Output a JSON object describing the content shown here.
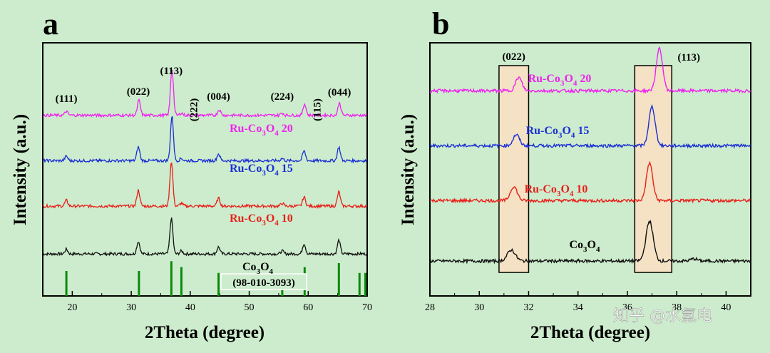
{
  "watermark": "知乎 @水氢电",
  "colors": {
    "black": "#111111",
    "red": "#e8201a",
    "blue": "#1a2fd4",
    "magenta": "#ee22ee",
    "reference": "#0a8a0a",
    "highlight": "#f5e2c4"
  },
  "chart_data": [
    {
      "panel": "a",
      "type": "line",
      "xlabel": "2Theta (degree)",
      "ylabel": "Intensity (a.u.)",
      "xlim": [
        15,
        70
      ],
      "xticks": [
        20,
        30,
        40,
        50,
        60,
        70
      ],
      "peak_labels": [
        {
          "text": "(111)",
          "x": 19.0
        },
        {
          "text": "(022)",
          "x": 31.2
        },
        {
          "text": "(113)",
          "x": 36.8
        },
        {
          "text": "(222)",
          "x": 38.5,
          "rotated": true
        },
        {
          "text": "(004)",
          "x": 44.8
        },
        {
          "text": "(224)",
          "x": 55.6
        },
        {
          "text": "(115)",
          "x": 59.4,
          "rotated": true
        },
        {
          "text": "(044)",
          "x": 65.3
        }
      ],
      "series": [
        {
          "name": "Co3O4",
          "label_main": "Co",
          "label_sub1": "3",
          "label_mid": "O",
          "label_sub2": "4",
          "label_tail": "",
          "color": "black",
          "baseline": 0.0,
          "peaks": [
            [
              19.0,
              0.08
            ],
            [
              31.2,
              0.22
            ],
            [
              36.8,
              0.62
            ],
            [
              38.5,
              0.05
            ],
            [
              44.8,
              0.12
            ],
            [
              55.6,
              0.05
            ],
            [
              59.3,
              0.18
            ],
            [
              65.2,
              0.24
            ]
          ]
        },
        {
          "name": "Ru-Co3O4 10",
          "label_main": "Ru-Co",
          "label_sub1": "3",
          "label_mid": "O",
          "label_sub2": "4",
          "label_tail": " 10",
          "color": "red",
          "baseline": 1.0,
          "peaks": [
            [
              19.0,
              0.1
            ],
            [
              31.2,
              0.28
            ],
            [
              36.8,
              0.78
            ],
            [
              38.5,
              0.05
            ],
            [
              44.8,
              0.14
            ],
            [
              55.6,
              0.05
            ],
            [
              59.3,
              0.16
            ],
            [
              65.2,
              0.25
            ]
          ]
        },
        {
          "name": "Ru-Co3O4 15",
          "label_main": "Ru-Co",
          "label_sub1": "3",
          "label_mid": "O",
          "label_sub2": "4",
          "label_tail": " 15",
          "color": "blue",
          "baseline": 1.95,
          "peaks": [
            [
              19.0,
              0.08
            ],
            [
              31.2,
              0.24
            ],
            [
              36.9,
              0.78
            ],
            [
              38.5,
              0.04
            ],
            [
              44.8,
              0.12
            ],
            [
              55.6,
              0.04
            ],
            [
              59.3,
              0.17
            ],
            [
              65.2,
              0.24
            ]
          ]
        },
        {
          "name": "Ru-Co3O4 20",
          "label_main": "Ru-Co",
          "label_sub1": "3",
          "label_mid": "O",
          "label_sub2": "4",
          "label_tail": " 20",
          "color": "magenta",
          "baseline": 2.9,
          "peaks": [
            [
              19.0,
              0.07
            ],
            [
              31.3,
              0.26
            ],
            [
              36.9,
              0.82
            ],
            [
              38.5,
              0.04
            ],
            [
              44.9,
              0.1
            ],
            [
              55.6,
              0.04
            ],
            [
              59.4,
              0.2
            ],
            [
              65.3,
              0.22
            ]
          ]
        }
      ],
      "reference": {
        "label": "(98-010-3093)",
        "positions": [
          19.0,
          31.3,
          36.8,
          38.5,
          44.8,
          55.6,
          59.4,
          65.2,
          68.7,
          69.7
        ],
        "heights": [
          0.6,
          0.6,
          0.85,
          0.7,
          0.55,
          0.45,
          0.7,
          0.8,
          0.55,
          0.55
        ]
      }
    },
    {
      "panel": "b",
      "type": "line",
      "xlabel": "2Theta (degree)",
      "ylabel": "Intensity (a.u.)",
      "xlim": [
        28,
        41
      ],
      "xticks": [
        28,
        30,
        32,
        34,
        36,
        38,
        40
      ],
      "highlight_boxes": [
        {
          "label": "(022)",
          "x0": 30.8,
          "x1": 32.0
        },
        {
          "label": "(113)",
          "x0": 36.3,
          "x1": 37.8
        }
      ],
      "series": [
        {
          "name": "Co3O4",
          "label_main": "Co",
          "label_sub1": "3",
          "label_mid": "O",
          "label_sub2": "4",
          "label_tail": "",
          "color": "black",
          "baseline": 0.0,
          "peaks": [
            [
              31.3,
              0.25,
              0.35
            ],
            [
              36.9,
              0.9,
              0.32
            ],
            [
              38.7,
              0.05,
              0.3
            ]
          ]
        },
        {
          "name": "Ru-Co3O4 10",
          "label_main": "Ru-Co",
          "label_sub1": "3",
          "label_mid": "O",
          "label_sub2": "4",
          "label_tail": " 10",
          "color": "red",
          "baseline": 1.1,
          "peaks": [
            [
              31.4,
              0.32,
              0.3
            ],
            [
              36.9,
              0.85,
              0.28
            ]
          ]
        },
        {
          "name": "Ru-Co3O4 15",
          "label_main": "Ru-Co",
          "label_sub1": "3",
          "label_mid": "O",
          "label_sub2": "4",
          "label_tail": " 15",
          "color": "blue",
          "baseline": 2.1,
          "peaks": [
            [
              31.5,
              0.25,
              0.28
            ],
            [
              37.0,
              0.88,
              0.28
            ]
          ]
        },
        {
          "name": "Ru-Co3O4 20",
          "label_main": "Ru-Co",
          "label_sub1": "3",
          "label_mid": "O",
          "label_sub2": "4",
          "label_tail": " 20",
          "color": "magenta",
          "baseline": 3.1,
          "peaks": [
            [
              31.6,
              0.3,
              0.28
            ],
            [
              37.3,
              0.95,
              0.28
            ]
          ]
        }
      ]
    }
  ]
}
